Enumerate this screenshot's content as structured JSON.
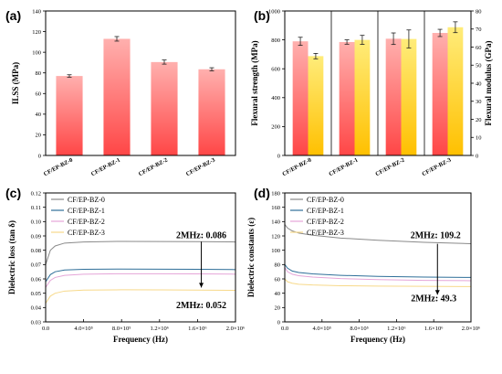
{
  "chart_data": [
    {
      "panel": "(a)",
      "type": "bar",
      "categories": [
        "CF/EP-BZ-0",
        "CF/EP-BZ-1",
        "CF/EP-BZ-2",
        "CF/EP-BZ-3"
      ],
      "values": [
        77,
        113,
        90.5,
        83.5
      ],
      "errors": [
        1.2,
        2.2,
        2.0,
        1.5
      ],
      "ylabel": "ILSS (MPa)",
      "ylim": [
        0,
        140
      ],
      "yticks": [
        0,
        20,
        40,
        60,
        80,
        100,
        120,
        140
      ],
      "colors": {
        "top": "#ffb0ae",
        "bottom": "#ff4646"
      }
    },
    {
      "panel": "(b)",
      "type": "bar",
      "categories": [
        "CF/EP-BZ-0",
        "CF/EP-BZ-1",
        "CF/EP-BZ-2",
        "CF/EP-BZ-3"
      ],
      "series": [
        {
          "axis": "left",
          "values": [
            790,
            785,
            808,
            848
          ],
          "errors": [
            28,
            15,
            40,
            25
          ],
          "colors": {
            "top": "#ffb0ae",
            "bottom": "#ff4646"
          }
        },
        {
          "axis": "right",
          "values": [
            55,
            64,
            64.5,
            71
          ],
          "errors": [
            1.5,
            2.5,
            5,
            3
          ],
          "colors": {
            "top": "#ffec7a",
            "bottom": "#ffc000"
          }
        }
      ],
      "ylabel": "Flexural strength (MPa)",
      "ylim": [
        0,
        1000
      ],
      "yticks": [
        0,
        200,
        400,
        600,
        800,
        1000
      ],
      "y2label": "Flexural modulus (GPa)",
      "y2lim": [
        0,
        80
      ],
      "y2ticks": [
        0,
        10,
        20,
        30,
        40,
        50,
        60,
        70,
        80
      ]
    },
    {
      "panel": "(c)",
      "type": "line",
      "xlabel": "Frequency (Hz)",
      "ylabel": "Dielectric loss (tan δ)",
      "xlim": [
        0,
        2000000
      ],
      "ylim": [
        0.03,
        0.12
      ],
      "xticks": [
        0,
        400000,
        800000,
        1200000,
        1600000,
        2000000
      ],
      "xtick_labels": [
        "0.0",
        "4.0×10⁵",
        "8.0×10⁵",
        "1.2×10⁶",
        "1.6×10⁶",
        "2.0×10⁶"
      ],
      "yticks": [
        0.03,
        0.04,
        0.05,
        0.06,
        0.07,
        0.08,
        0.09,
        0.1,
        0.11,
        0.12
      ],
      "series": [
        {
          "name": "CF/EP-BZ-0",
          "color": "#8a8a8a",
          "x": [
            0,
            50000,
            100000,
            200000,
            400000,
            800000,
            1200000,
            1600000,
            2000000
          ],
          "y": [
            0.07,
            0.08,
            0.083,
            0.085,
            0.0858,
            0.0862,
            0.0861,
            0.086,
            0.0858
          ]
        },
        {
          "name": "CF/EP-BZ-1",
          "color": "#2f6f99",
          "x": [
            0,
            50000,
            100000,
            200000,
            400000,
            800000,
            1200000,
            1600000,
            2000000
          ],
          "y": [
            0.058,
            0.063,
            0.065,
            0.0662,
            0.0667,
            0.0669,
            0.0668,
            0.0667,
            0.0665
          ]
        },
        {
          "name": "CF/EP-BZ-2",
          "color": "#e5a5d8",
          "x": [
            0,
            50000,
            100000,
            200000,
            400000,
            800000,
            1200000,
            1600000,
            2000000
          ],
          "y": [
            0.054,
            0.059,
            0.061,
            0.0625,
            0.0633,
            0.0636,
            0.0636,
            0.0635,
            0.0633
          ]
        },
        {
          "name": "CF/EP-BZ-3",
          "color": "#f7d98a",
          "x": [
            0,
            50000,
            100000,
            200000,
            400000,
            800000,
            1200000,
            1600000,
            2000000
          ],
          "y": [
            0.043,
            0.048,
            0.05,
            0.0515,
            0.0522,
            0.0524,
            0.0523,
            0.0522,
            0.052
          ]
        }
      ],
      "annotations": [
        {
          "text": "2MHz: 0.086",
          "x": 1640000,
          "y": 0.0885
        },
        {
          "text": "2MHz: 0.052",
          "x": 1640000,
          "y": 0.0395
        }
      ],
      "arrow": {
        "x": 1640000,
        "y_from": 0.086,
        "y_to": 0.054
      }
    },
    {
      "panel": "(d)",
      "type": "line",
      "xlabel": "Frequency (Hz)",
      "ylabel": "Dielectric constants (ε)",
      "xlim": [
        0,
        2000000
      ],
      "ylim": [
        0,
        180
      ],
      "xticks": [
        0,
        400000,
        800000,
        1200000,
        1600000,
        2000000
      ],
      "xtick_labels": [
        "0.0",
        "4.0×10⁵",
        "8.0×10⁵",
        "1.2×10⁶",
        "1.6×10⁶",
        "2.0×10⁶"
      ],
      "yticks": [
        0,
        20,
        40,
        60,
        80,
        100,
        120,
        140,
        160,
        180
      ],
      "series": [
        {
          "name": "CF/EP-BZ-0",
          "color": "#8a8a8a",
          "x": [
            0,
            30000,
            80000,
            150000,
            300000,
            600000,
            1000000,
            1500000,
            2000000
          ],
          "y": [
            136,
            131,
            127,
            124,
            121,
            117,
            114,
            111,
            109.2
          ]
        },
        {
          "name": "CF/EP-BZ-1",
          "color": "#2f6f99",
          "x": [
            0,
            30000,
            80000,
            150000,
            300000,
            600000,
            1000000,
            1500000,
            2000000
          ],
          "y": [
            80,
            75,
            71,
            69,
            67,
            65,
            63.5,
            62.5,
            62
          ]
        },
        {
          "name": "CF/EP-BZ-2",
          "color": "#e5a5d8",
          "x": [
            0,
            30000,
            80000,
            150000,
            300000,
            600000,
            1000000,
            1500000,
            2000000
          ],
          "y": [
            76,
            70,
            66.5,
            64.5,
            62.5,
            60.5,
            59,
            58,
            57.5
          ]
        },
        {
          "name": "CF/EP-BZ-3",
          "color": "#f7d98a",
          "x": [
            0,
            30000,
            80000,
            150000,
            300000,
            600000,
            1000000,
            1500000,
            2000000
          ],
          "y": [
            60,
            56,
            54,
            52.5,
            51.5,
            50.5,
            50,
            49.6,
            49.3
          ]
        }
      ],
      "annotations": [
        {
          "text": "2MHz: 109.2",
          "x": 1620000,
          "y": 117
        },
        {
          "text": "2MHz: 49.3",
          "x": 1600000,
          "y": 29
        }
      ],
      "arrow": {
        "x": 1640000,
        "y_from": 109,
        "y_to": 38
      }
    }
  ]
}
